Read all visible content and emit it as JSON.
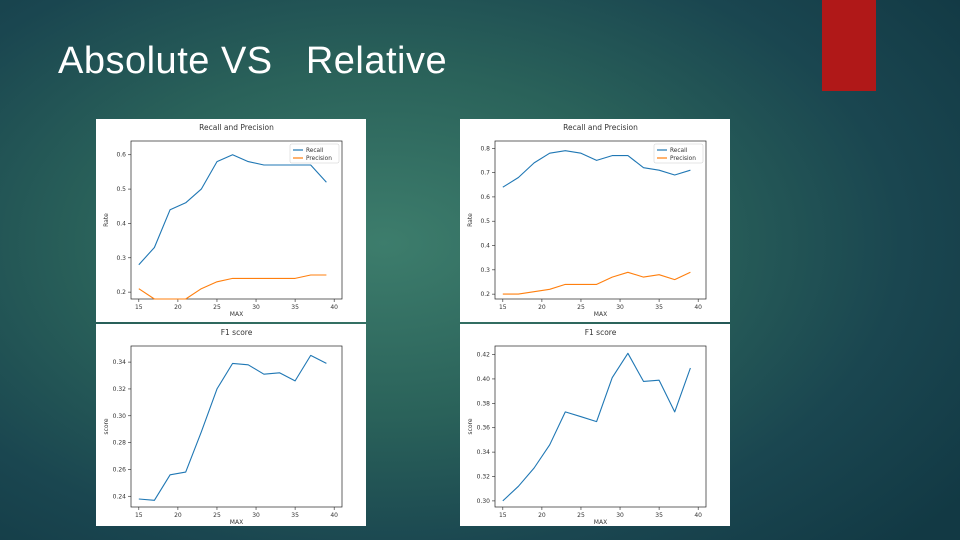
{
  "slide": {
    "title_absolute": "Absolute VS",
    "title_relative": "Relative",
    "accent_color": "#b01818"
  },
  "series_colors": {
    "recall": "#1f77b4",
    "precision": "#ff7f0e",
    "f1": "#1f77b4"
  },
  "chart_data": [
    {
      "id": "abs_rp",
      "type": "line",
      "title": "Recall and Precision",
      "xlabel": "MAX",
      "ylabel": "Rate",
      "xlim": [
        14,
        41
      ],
      "ylim": [
        0.18,
        0.64
      ],
      "xticks": [
        15,
        20,
        25,
        30,
        35,
        40
      ],
      "xtick_labels": [
        "15",
        "20",
        "25",
        "30",
        "35",
        "40"
      ],
      "yticks": [
        0.2,
        0.3,
        0.4,
        0.5,
        0.6
      ],
      "ytick_labels": [
        "0.2",
        "0.3",
        "0.4",
        "0.5",
        "0.6"
      ],
      "legend": "top-right",
      "x": [
        15,
        17,
        19,
        21,
        23,
        25,
        27,
        29,
        31,
        33,
        35,
        37,
        39
      ],
      "series": [
        {
          "name": "Recall",
          "values": [
            0.28,
            0.33,
            0.44,
            0.46,
            0.5,
            0.58,
            0.6,
            0.58,
            0.57,
            0.57,
            0.57,
            0.57,
            0.52
          ]
        },
        {
          "name": "Precision",
          "values": [
            0.21,
            0.18,
            0.18,
            0.18,
            0.21,
            0.23,
            0.24,
            0.24,
            0.24,
            0.24,
            0.24,
            0.25,
            0.25
          ]
        }
      ]
    },
    {
      "id": "rel_rp",
      "type": "line",
      "title": "Recall and Precision",
      "xlabel": "MAX",
      "ylabel": "Rate",
      "xlim": [
        14,
        41
      ],
      "ylim": [
        0.18,
        0.83
      ],
      "xticks": [
        15,
        20,
        25,
        30,
        35,
        40
      ],
      "xtick_labels": [
        "15",
        "20",
        "25",
        "30",
        "35",
        "40"
      ],
      "yticks": [
        0.2,
        0.3,
        0.4,
        0.5,
        0.6,
        0.7,
        0.8
      ],
      "ytick_labels": [
        "0.2",
        "0.3",
        "0.4",
        "0.5",
        "0.6",
        "0.7",
        "0.8"
      ],
      "legend": "top-right",
      "x": [
        15,
        17,
        19,
        21,
        23,
        25,
        27,
        29,
        31,
        33,
        35,
        37,
        39
      ],
      "series": [
        {
          "name": "Recall",
          "values": [
            0.64,
            0.68,
            0.74,
            0.78,
            0.79,
            0.78,
            0.75,
            0.77,
            0.77,
            0.72,
            0.71,
            0.69,
            0.71
          ]
        },
        {
          "name": "Precision",
          "values": [
            0.2,
            0.2,
            0.21,
            0.22,
            0.24,
            0.24,
            0.24,
            0.27,
            0.29,
            0.27,
            0.28,
            0.26,
            0.29
          ]
        }
      ]
    },
    {
      "id": "abs_f1",
      "type": "line",
      "title": "F1 score",
      "xlabel": "MAX",
      "ylabel": "score",
      "xlim": [
        14,
        41
      ],
      "ylim": [
        0.232,
        0.352
      ],
      "xticks": [
        15,
        20,
        25,
        30,
        35,
        40
      ],
      "xtick_labels": [
        "15",
        "20",
        "25",
        "30",
        "35",
        "40"
      ],
      "yticks": [
        0.24,
        0.26,
        0.28,
        0.3,
        0.32,
        0.34
      ],
      "ytick_labels": [
        "0.24",
        "0.26",
        "0.28",
        "0.30",
        "0.32",
        "0.34"
      ],
      "legend": "none",
      "x": [
        15,
        17,
        19,
        21,
        23,
        25,
        27,
        29,
        31,
        33,
        35,
        37,
        39
      ],
      "series": [
        {
          "name": "",
          "values": [
            0.238,
            0.237,
            0.256,
            0.258,
            0.288,
            0.32,
            0.339,
            0.338,
            0.331,
            0.332,
            0.326,
            0.345,
            0.339
          ]
        }
      ]
    },
    {
      "id": "rel_f1",
      "type": "line",
      "title": "F1 score",
      "xlabel": "MAX",
      "ylabel": "score",
      "xlim": [
        14,
        41
      ],
      "ylim": [
        0.295,
        0.427
      ],
      "xticks": [
        15,
        20,
        25,
        30,
        35,
        40
      ],
      "xtick_labels": [
        "15",
        "20",
        "25",
        "30",
        "35",
        "40"
      ],
      "yticks": [
        0.3,
        0.32,
        0.34,
        0.36,
        0.38,
        0.4,
        0.42
      ],
      "ytick_labels": [
        "0.30",
        "0.32",
        "0.34",
        "0.36",
        "0.38",
        "0.40",
        "0.42"
      ],
      "legend": "none",
      "x": [
        15,
        17,
        19,
        21,
        23,
        25,
        27,
        29,
        31,
        33,
        35,
        37,
        39
      ],
      "series": [
        {
          "name": "",
          "values": [
            0.3,
            0.312,
            0.327,
            0.346,
            0.373,
            0.369,
            0.365,
            0.401,
            0.421,
            0.398,
            0.399,
            0.373,
            0.409
          ]
        }
      ]
    }
  ]
}
